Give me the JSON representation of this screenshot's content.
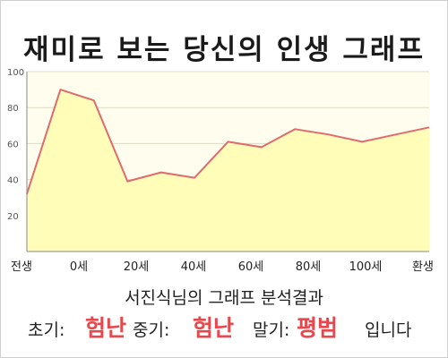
{
  "title": "재미로 보는 당신의 인생 그래프",
  "subtitle": "서진식님의 그래프 분석결과",
  "result": {
    "early_label": "초기:",
    "early_value": "험난",
    "middle_label": "중기:",
    "middle_value": "험난",
    "late_label": "말기:",
    "late_value": "평범",
    "suffix": "입니다"
  },
  "colors": {
    "line": "#e06a6e",
    "fill": "#fffdb8",
    "plot_bg": "#fffeee",
    "highlight": "#e8484d"
  },
  "chart_data": {
    "type": "area",
    "xlabel": "",
    "ylabel": "",
    "ylim": [
      0,
      100
    ],
    "yticks": [
      20,
      40,
      60,
      80,
      100
    ],
    "grid": true,
    "legend": "none",
    "x_tick_labels": [
      "전생",
      "0세",
      "20세",
      "40세",
      "60세",
      "80세",
      "100세",
      "환생"
    ],
    "series": [
      {
        "values": [
          32,
          90,
          84,
          39,
          44,
          41,
          61,
          58,
          68,
          65,
          61,
          65,
          69
        ]
      }
    ]
  }
}
